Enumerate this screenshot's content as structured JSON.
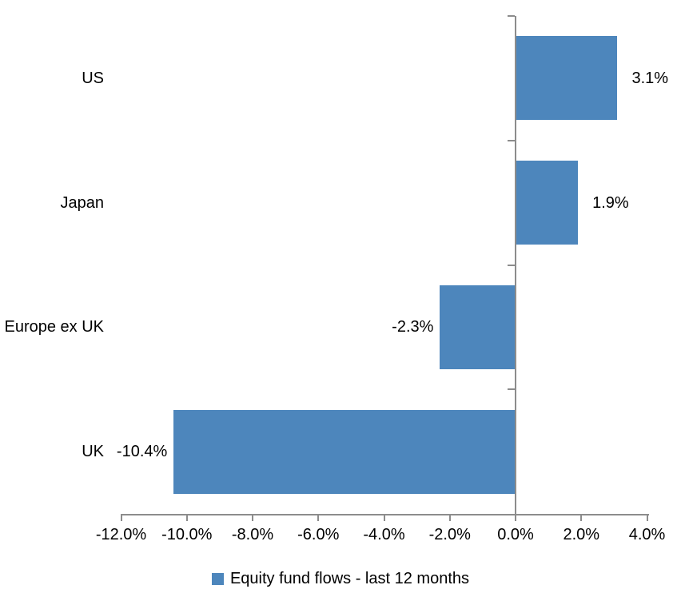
{
  "chart_data": {
    "type": "bar",
    "orientation": "horizontal",
    "title": "",
    "categories": [
      "US",
      "Japan",
      "Europe ex UK",
      "UK"
    ],
    "series": [
      {
        "name": "Equity fund flows - last 12 months",
        "values": [
          3.1,
          1.9,
          -2.3,
          -10.4
        ],
        "data_labels": [
          "3.1%",
          "1.9%",
          "-2.3%",
          "-10.4%"
        ],
        "color": "#4D86BC"
      }
    ],
    "xlabel": "",
    "ylabel": "",
    "xlim": [
      -12,
      4
    ],
    "x_ticks": [
      -12,
      -10,
      -8,
      -6,
      -4,
      -2,
      0,
      2,
      4
    ],
    "x_tick_labels": [
      "-12.0%",
      "-10.0%",
      "-8.0%",
      "-6.0%",
      "-4.0%",
      "-2.0%",
      "0.0%",
      "2.0%",
      "4.0%"
    ],
    "grid": "off",
    "legend_position": "bottom",
    "legend": {
      "label": "Equity fund flows - last 12 months",
      "swatch_color": "#4D86BC"
    },
    "colors": {
      "bar": "#4D86BC",
      "axis": "#8C8C8C",
      "text": "#000000",
      "background": "#ffffff"
    }
  }
}
